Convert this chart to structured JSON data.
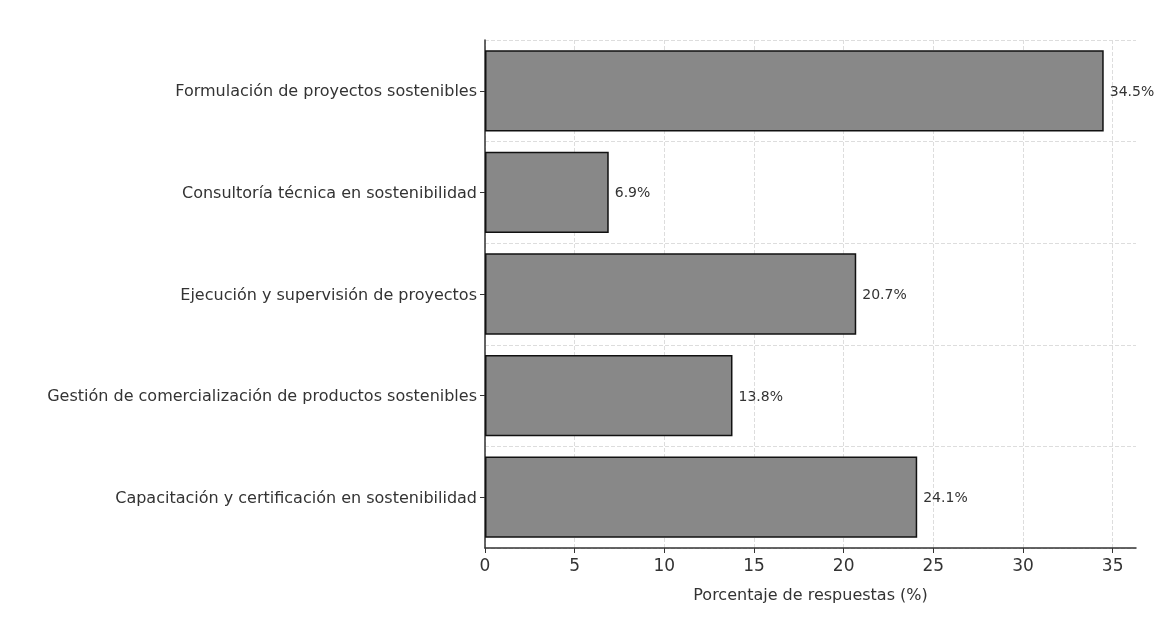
{
  "chart_data": {
    "type": "bar",
    "orientation": "horizontal",
    "xlabel": "Porcentaje de respuestas (%)",
    "categories": [
      "Formulación de proyectos sostenibles",
      "Consultoría técnica en sostenibilidad",
      "Ejecución y supervisión de proyectos",
      "Gestión de comercialización de productos sostenibles",
      "Capacitación y certificación en sostenibilidad"
    ],
    "values": [
      34.5,
      6.9,
      20.7,
      13.8,
      24.1
    ],
    "value_labels": [
      "34.5%",
      "6.9%",
      "20.7%",
      "13.8%",
      "24.1%"
    ],
    "color": "#888888",
    "xlim": [
      0,
      36.3
    ],
    "xticks": [
      0,
      5,
      10,
      15,
      20,
      25,
      30,
      35
    ],
    "grid": true,
    "line_style": "dashed"
  }
}
